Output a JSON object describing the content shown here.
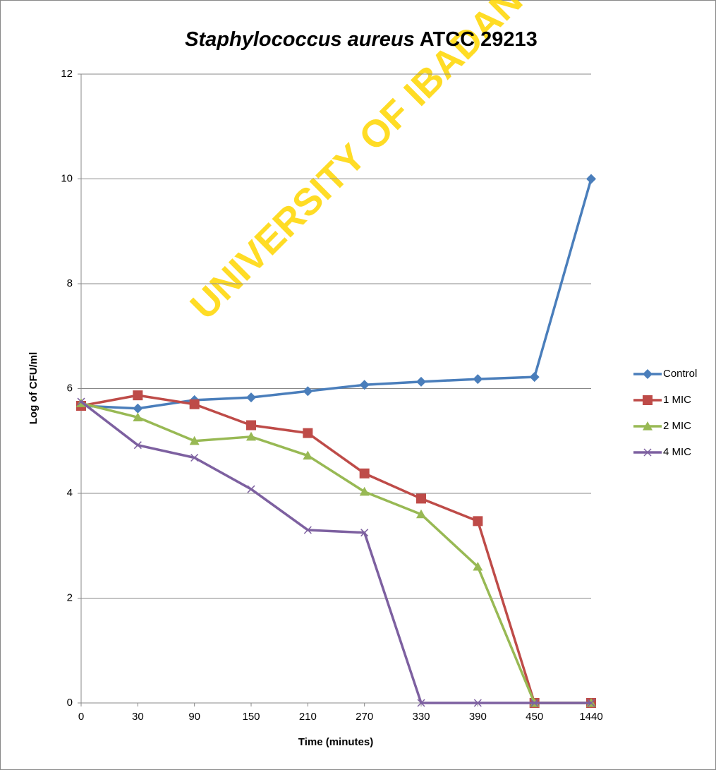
{
  "chart_data": {
    "type": "line",
    "title": [
      "Staphylococcus aureus",
      "ATCC 29213"
    ],
    "watermark": "UNIVERSITY OF IBADAN",
    "x_label": "Time (minutes)",
    "y_label": "Log of CFU/ml",
    "categories": [
      "0",
      "30",
      "90",
      "150",
      "210",
      "270",
      "330",
      "390",
      "450",
      "1440"
    ],
    "series": [
      {
        "name": "Control",
        "color": "#4a7ebb",
        "marker": "diamond",
        "values": [
          5.67,
          5.62,
          5.78,
          5.83,
          5.95,
          6.07,
          6.13,
          6.18,
          6.22,
          10
        ]
      },
      {
        "name": "1 MIC",
        "color": "#be4b48",
        "marker": "square",
        "values": [
          5.67,
          5.87,
          5.7,
          5.3,
          5.15,
          4.38,
          3.9,
          3.47,
          0,
          0
        ]
      },
      {
        "name": "2 MIC",
        "color": "#98b954",
        "marker": "triangle",
        "values": [
          5.72,
          5.45,
          5.0,
          5.08,
          4.72,
          4.03,
          3.6,
          2.6,
          0,
          0
        ]
      },
      {
        "name": "4 MIC",
        "color": "#7d60a0",
        "marker": "x",
        "values": [
          5.75,
          4.92,
          4.68,
          4.08,
          3.3,
          3.25,
          0,
          0,
          0,
          0
        ]
      }
    ],
    "ylim": [
      0,
      12
    ],
    "yticks": [
      0,
      2,
      4,
      6,
      8,
      10,
      12
    ],
    "grid": true,
    "legend": "right"
  }
}
